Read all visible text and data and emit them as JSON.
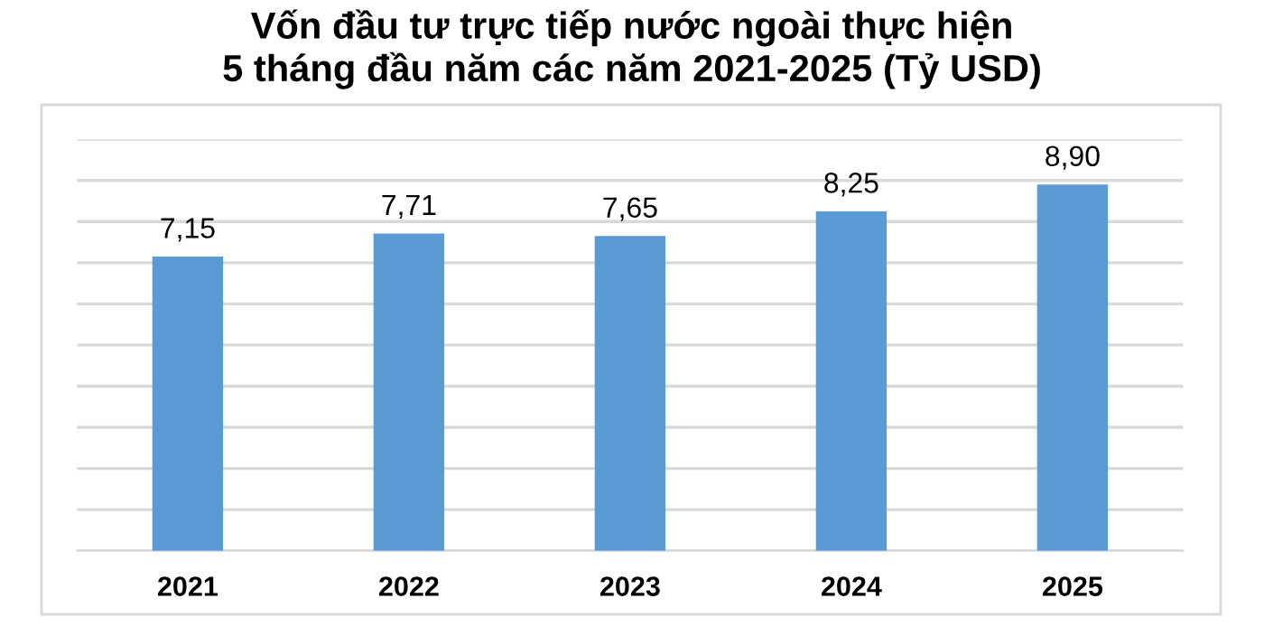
{
  "chart_data": {
    "type": "bar",
    "title": "Vốn đầu tư trực tiếp nước ngoài thực hiện\n5 tháng đầu năm các năm 2021-2025 (Tỷ USD)",
    "categories": [
      "2021",
      "2022",
      "2023",
      "2024",
      "2025"
    ],
    "values": [
      7.15,
      7.71,
      7.65,
      8.25,
      8.9
    ],
    "value_labels": [
      "7,15",
      "7,71",
      "7,65",
      "8,25",
      "8,90"
    ],
    "color": "#5b9bd5",
    "ylim": [
      0,
      10
    ],
    "yticks": [
      {
        "value": 0,
        "label": null
      },
      {
        "value": 1,
        "label": null
      },
      {
        "value": 2,
        "label": null
      },
      {
        "value": 3,
        "label": null
      },
      {
        "value": 4,
        "label": null
      },
      {
        "value": 5,
        "label": null
      },
      {
        "value": 6,
        "label": null
      },
      {
        "value": 7,
        "label": null
      },
      {
        "value": 8,
        "label": null
      },
      {
        "value": 9,
        "label": null
      },
      {
        "value": 10,
        "label": null
      }
    ],
    "grid": "y",
    "tick_labels": "x"
  }
}
